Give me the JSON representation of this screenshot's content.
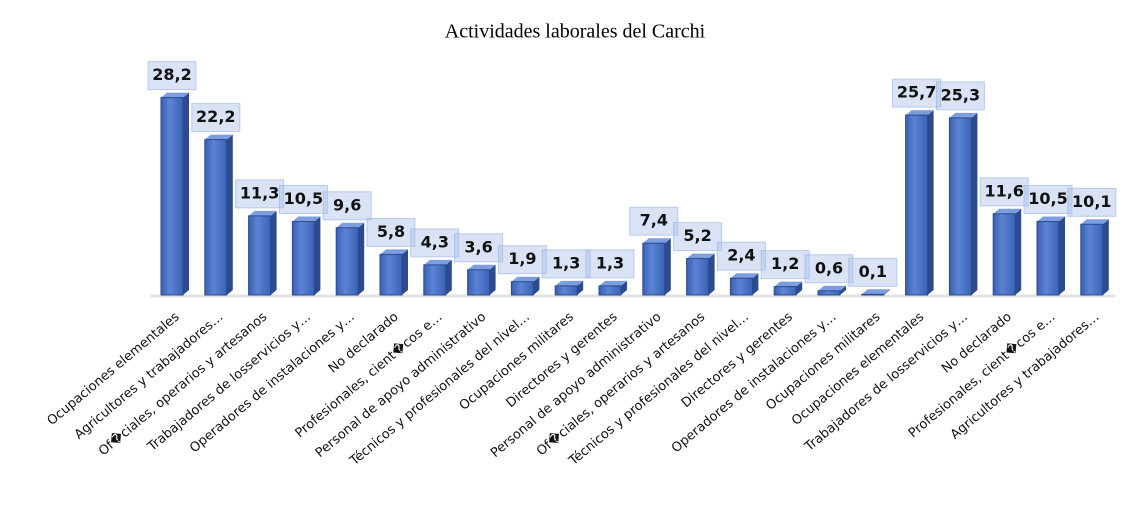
{
  "chart_data": {
    "type": "bar3d",
    "title": "Actividades laborales del Carchi",
    "categories": [
      "Ocupaciones elementales",
      "Agricultores y trabajadores…",
      "Of�ciales, operarios y artesanos",
      "Trabajadores de losservicios y…",
      "Operadores de instalaciones y…",
      "No declarado",
      "Profesionales, cient�cos e…",
      "Personal de apoyo administrativo",
      "Técnicos y profesionales del nivel…",
      "Ocupaciones militares",
      "Directores y gerentes",
      "Personal de apoyo administrativo",
      "Of�ciales, operarios y artesanos",
      "Técnicos y profesionales del nivel…",
      "Directores y gerentes",
      "Operadores de instalaciones y…",
      "Ocupaciones militares",
      "Ocupaciones elementales",
      "Trabajadores de losservicios y…",
      "No declarado",
      "Profesionales, cient�cos e…",
      "Agricultores y trabajadores…"
    ],
    "values": [
      28.2,
      22.2,
      11.3,
      10.5,
      9.6,
      5.8,
      4.3,
      3.6,
      1.9,
      1.3,
      1.3,
      7.4,
      5.2,
      2.4,
      1.2,
      0.6,
      0.1,
      25.7,
      25.3,
      11.6,
      10.5,
      10.1
    ],
    "value_labels": [
      "28,2",
      "22,2",
      "11,3",
      "10,5",
      "9,6",
      "5,8",
      "4,3",
      "3,6",
      "1,9",
      "1,3",
      "1,3",
      "7,4",
      "5,2",
      "2,4",
      "1,2",
      "0,6",
      "0,1",
      "25,7",
      "25,3",
      "11,6",
      "10,5",
      "10,1"
    ],
    "color": "#4a72c6"
  }
}
